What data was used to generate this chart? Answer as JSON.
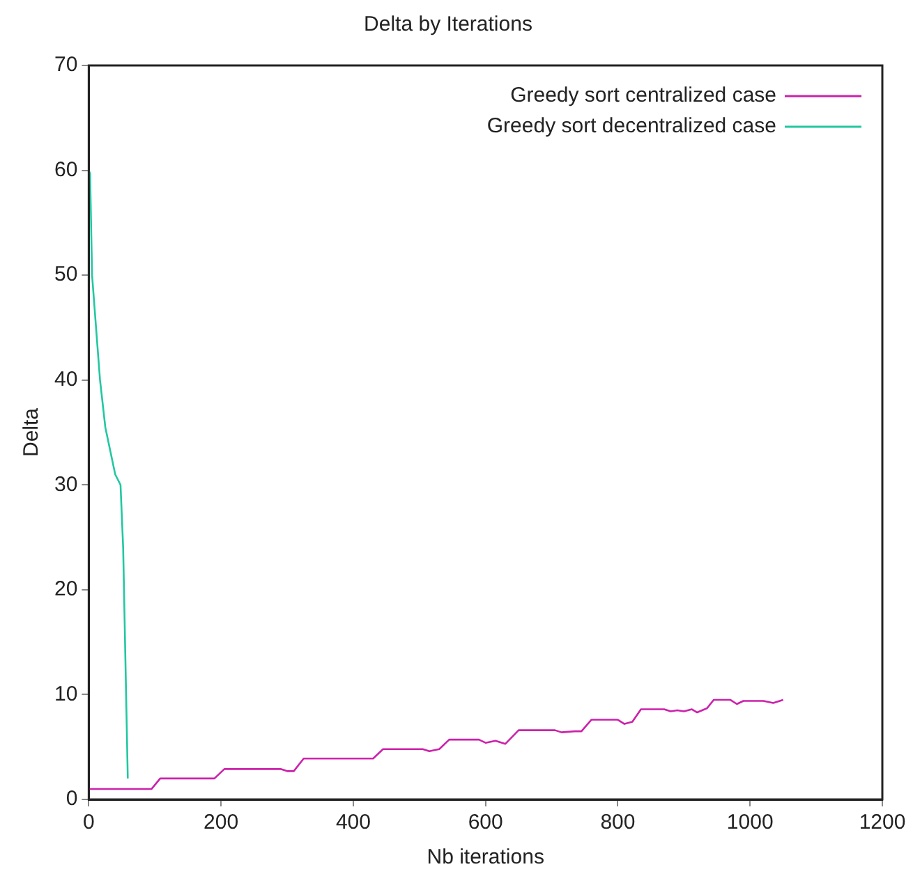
{
  "chart_data": {
    "type": "line",
    "title": "Delta by Iterations",
    "xlabel": "Nb iterations",
    "ylabel": "Delta",
    "xlim": [
      0,
      1200
    ],
    "xticks": [
      0,
      200,
      400,
      600,
      800,
      1000,
      1200
    ],
    "ylim": [
      0,
      70
    ],
    "yticks": [
      0,
      10,
      20,
      30,
      40,
      50,
      60,
      70
    ],
    "grid": false,
    "legend": "top right",
    "marker": "none",
    "line_style": "solid",
    "series": [
      {
        "name": "Greedy sort centralized case",
        "color": "#cc22aa",
        "x": [
          0,
          95,
          108,
          190,
          205,
          290,
          300,
          310,
          325,
          430,
          445,
          505,
          515,
          530,
          545,
          590,
          600,
          615,
          630,
          650,
          705,
          715,
          735,
          745,
          760,
          800,
          810,
          822,
          835,
          870,
          880,
          890,
          900,
          912,
          920,
          935,
          945,
          970,
          980,
          990,
          1020,
          1035,
          1050
        ],
        "values": [
          1,
          1,
          2,
          2,
          2.9,
          2.9,
          2.7,
          2.7,
          3.9,
          3.9,
          4.8,
          4.8,
          4.6,
          4.8,
          5.7,
          5.7,
          5.4,
          5.6,
          5.3,
          6.6,
          6.6,
          6.4,
          6.5,
          6.5,
          7.6,
          7.6,
          7.2,
          7.4,
          8.6,
          8.6,
          8.4,
          8.5,
          8.4,
          8.6,
          8.3,
          8.7,
          9.5,
          9.5,
          9.1,
          9.4,
          9.4,
          9.2,
          9.5
        ]
      },
      {
        "name": "Greedy sort decentralized case",
        "color": "#22c8a0",
        "x": [
          0,
          2,
          5,
          17,
          25,
          40,
          48,
          52,
          59
        ],
        "values": [
          60,
          59.7,
          50,
          40,
          35.5,
          31,
          30,
          24,
          2
        ]
      }
    ]
  }
}
